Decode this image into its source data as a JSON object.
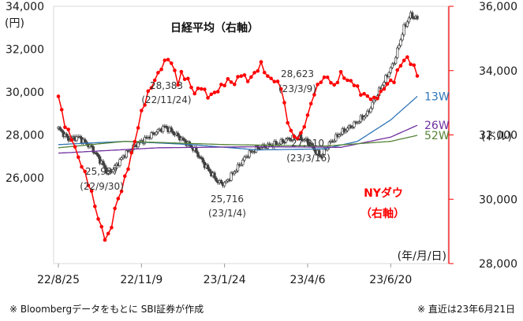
{
  "chart_data": {
    "type": "line",
    "title": "日経平均（右軸）",
    "left_axis": {
      "unit": "(円)",
      "ticks": [
        "34,000",
        "32,000",
        "30,000",
        "28,000",
        "26,000"
      ],
      "tick_values": [
        34000,
        32000,
        30000,
        28000,
        26000
      ],
      "range": [
        22000,
        34000
      ]
    },
    "right_axis": {
      "unit": "(ドル)",
      "ticks": [
        "36,000",
        "34,000",
        "32,000",
        "30,000",
        "28,000"
      ],
      "tick_values": [
        36000,
        34000,
        32000,
        30000,
        28000
      ],
      "range": [
        28000,
        36000
      ]
    },
    "x_axis": {
      "unit": "(年/月/日)",
      "tick_labels": [
        "22/8/25",
        "22/11/9",
        "23/1/24",
        "23/4/6",
        "23/6/20"
      ],
      "tick_index": [
        0,
        50,
        100,
        150,
        200
      ]
    },
    "nikkei": {
      "name": "日経平均",
      "keys": [
        [
          0,
          28300
        ],
        [
          6,
          27800
        ],
        [
          12,
          27900
        ],
        [
          20,
          27400
        ],
        [
          26,
          26700
        ],
        [
          30,
          26200
        ],
        [
          34,
          26500
        ],
        [
          40,
          27100
        ],
        [
          46,
          27500
        ],
        [
          52,
          27800
        ],
        [
          58,
          28100
        ],
        [
          64,
          28383
        ],
        [
          70,
          28050
        ],
        [
          76,
          27700
        ],
        [
          82,
          27300
        ],
        [
          88,
          26600
        ],
        [
          92,
          26200
        ],
        [
          96,
          25800
        ],
        [
          100,
          25716
        ],
        [
          104,
          26100
        ],
        [
          108,
          26500
        ],
        [
          114,
          27100
        ],
        [
          120,
          27400
        ],
        [
          126,
          27500
        ],
        [
          132,
          27600
        ],
        [
          138,
          27800
        ],
        [
          144,
          27900
        ],
        [
          150,
          27700
        ],
        [
          155,
          27200
        ],
        [
          158,
          27010
        ],
        [
          163,
          27600
        ],
        [
          170,
          28100
        ],
        [
          178,
          28500
        ],
        [
          186,
          29000
        ],
        [
          194,
          30200
        ],
        [
          202,
          31400
        ],
        [
          208,
          33000
        ],
        [
          212,
          33600
        ],
        [
          216,
          33400
        ]
      ]
    },
    "ma_lines": [
      {
        "name": "13W",
        "label": "13W",
        "color": "#2e75b6",
        "keys": [
          [
            0,
            27550
          ],
          [
            40,
            27700
          ],
          [
            80,
            27550
          ],
          [
            120,
            27300
          ],
          [
            160,
            27350
          ],
          [
            180,
            27700
          ],
          [
            200,
            28700
          ],
          [
            216,
            29800
          ]
        ]
      },
      {
        "name": "26W",
        "label": "26W",
        "color": "#7030a0",
        "keys": [
          [
            0,
            27150
          ],
          [
            60,
            27400
          ],
          [
            120,
            27450
          ],
          [
            170,
            27420
          ],
          [
            200,
            27900
          ],
          [
            216,
            28450
          ]
        ]
      },
      {
        "name": "52W",
        "label": "52W",
        "color": "#548235",
        "keys": [
          [
            0,
            27400
          ],
          [
            40,
            27700
          ],
          [
            100,
            27550
          ],
          [
            160,
            27480
          ],
          [
            200,
            27700
          ],
          [
            216,
            27980
          ]
        ]
      }
    ],
    "ny_dow": {
      "name": "NYダウ",
      "color": "#ff0000",
      "keys": [
        [
          0,
          33200
        ],
        [
          4,
          32300
        ],
        [
          8,
          31900
        ],
        [
          12,
          31300
        ],
        [
          16,
          30800
        ],
        [
          20,
          30200
        ],
        [
          24,
          29400
        ],
        [
          28,
          28800
        ],
        [
          31,
          28900
        ],
        [
          34,
          29700
        ],
        [
          38,
          30300
        ],
        [
          42,
          31000
        ],
        [
          46,
          31800
        ],
        [
          50,
          32700
        ],
        [
          54,
          33300
        ],
        [
          58,
          33700
        ],
        [
          62,
          34100
        ],
        [
          66,
          34400
        ],
        [
          70,
          34000
        ],
        [
          72,
          33600
        ],
        [
          74,
          33900
        ],
        [
          78,
          33700
        ],
        [
          82,
          33300
        ],
        [
          86,
          33500
        ],
        [
          90,
          33200
        ],
        [
          94,
          33300
        ],
        [
          98,
          33500
        ],
        [
          102,
          33700
        ],
        [
          106,
          33600
        ],
        [
          110,
          33900
        ],
        [
          114,
          33700
        ],
        [
          118,
          33900
        ],
        [
          122,
          34200
        ],
        [
          126,
          33800
        ],
        [
          130,
          33700
        ],
        [
          134,
          33500
        ],
        [
          138,
          32400
        ],
        [
          142,
          31900
        ],
        [
          146,
          32000
        ],
        [
          150,
          32600
        ],
        [
          154,
          33300
        ],
        [
          158,
          33700
        ],
        [
          162,
          33800
        ],
        [
          166,
          33500
        ],
        [
          170,
          33900
        ],
        [
          174,
          33700
        ],
        [
          178,
          33600
        ],
        [
          182,
          33300
        ],
        [
          186,
          33200
        ],
        [
          190,
          33100
        ],
        [
          194,
          33300
        ],
        [
          198,
          33600
        ],
        [
          202,
          33700
        ],
        [
          206,
          34200
        ],
        [
          210,
          34400
        ],
        [
          214,
          34100
        ],
        [
          216,
          33900
        ]
      ]
    },
    "annotations": [
      {
        "label": "28,383",
        "date": "(22/11/24)"
      },
      {
        "label": "25,937",
        "date": "(22/9/30)"
      },
      {
        "label": "25,716",
        "date": "(23/1/4)"
      },
      {
        "label": "28,623",
        "date": "(23/3/9)"
      },
      {
        "label": "27,010",
        "date": "(23/3/16)"
      }
    ],
    "ny_label_lines": [
      "NYダウ",
      "（右軸）"
    ]
  },
  "footer": {
    "source": "※ Bloombergデータをもとに SBI証券が作成",
    "note": "※ 直近は23年6月21日"
  }
}
